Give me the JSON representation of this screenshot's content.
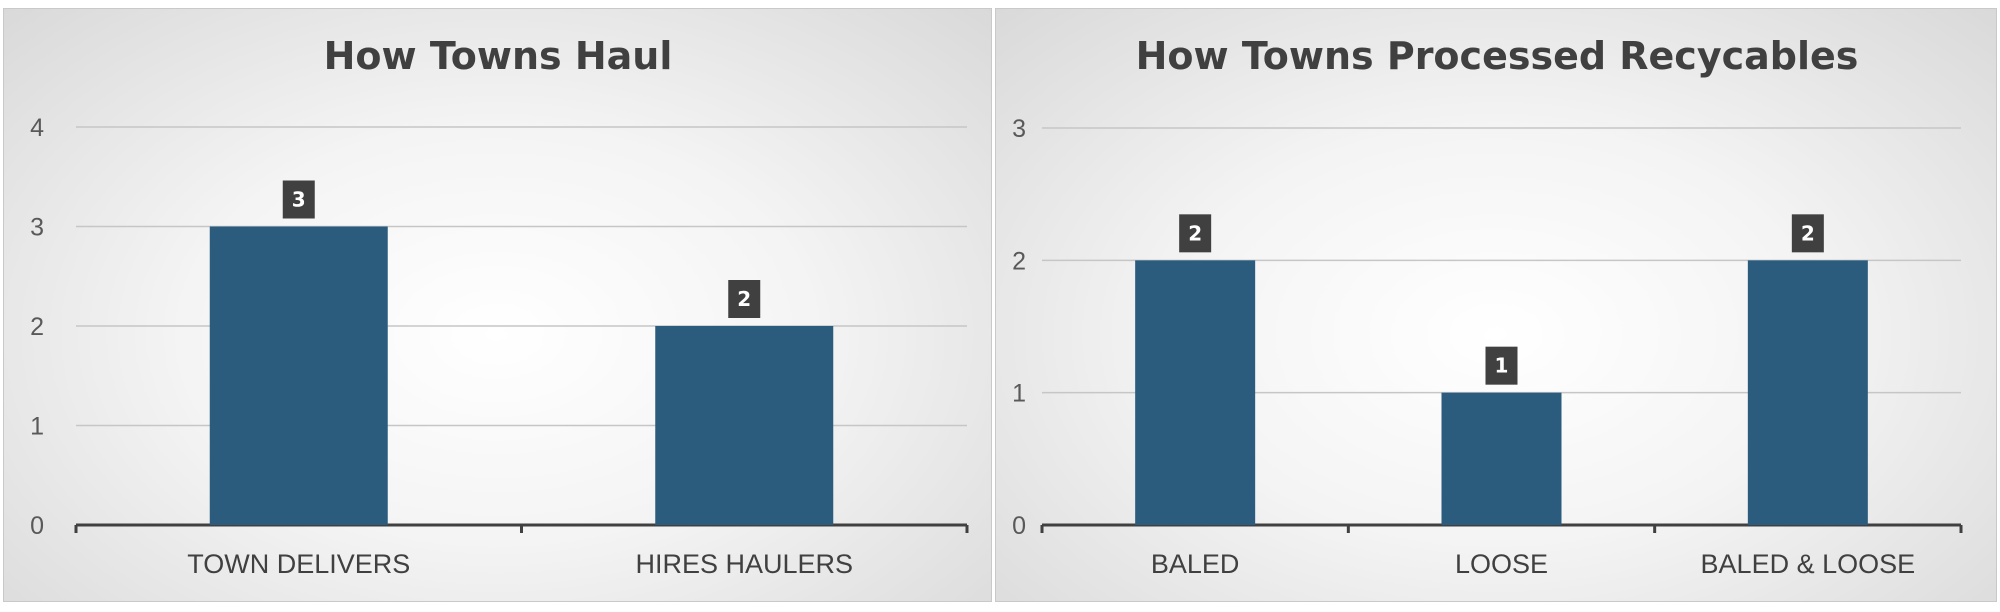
{
  "chart_data": [
    {
      "type": "bar",
      "title": "How Towns Haul",
      "categories": [
        "TOWN DELIVERS",
        "HIRES HAULERS"
      ],
      "values": [
        3,
        2
      ],
      "data_labels": [
        "3",
        "2"
      ],
      "y_ticks": [
        "0",
        "1",
        "2",
        "3",
        "4"
      ],
      "ylim": [
        0,
        4
      ],
      "xlabel": "",
      "ylabel": "",
      "grid": true,
      "legend": "none",
      "bar_color": "#2b5c7e",
      "label_bg_color": "#404040"
    },
    {
      "type": "bar",
      "title": "How Towns Processed Recycables",
      "categories": [
        "BALED",
        "LOOSE",
        "BALED & LOOSE"
      ],
      "values": [
        2,
        1,
        2
      ],
      "data_labels": [
        "2",
        "1",
        "2"
      ],
      "y_ticks": [
        "0",
        "1",
        "2",
        "3"
      ],
      "ylim": [
        0,
        3
      ],
      "xlabel": "",
      "ylabel": "",
      "grid": true,
      "legend": "none",
      "bar_color": "#2b5c7e",
      "label_bg_color": "#404040"
    }
  ]
}
